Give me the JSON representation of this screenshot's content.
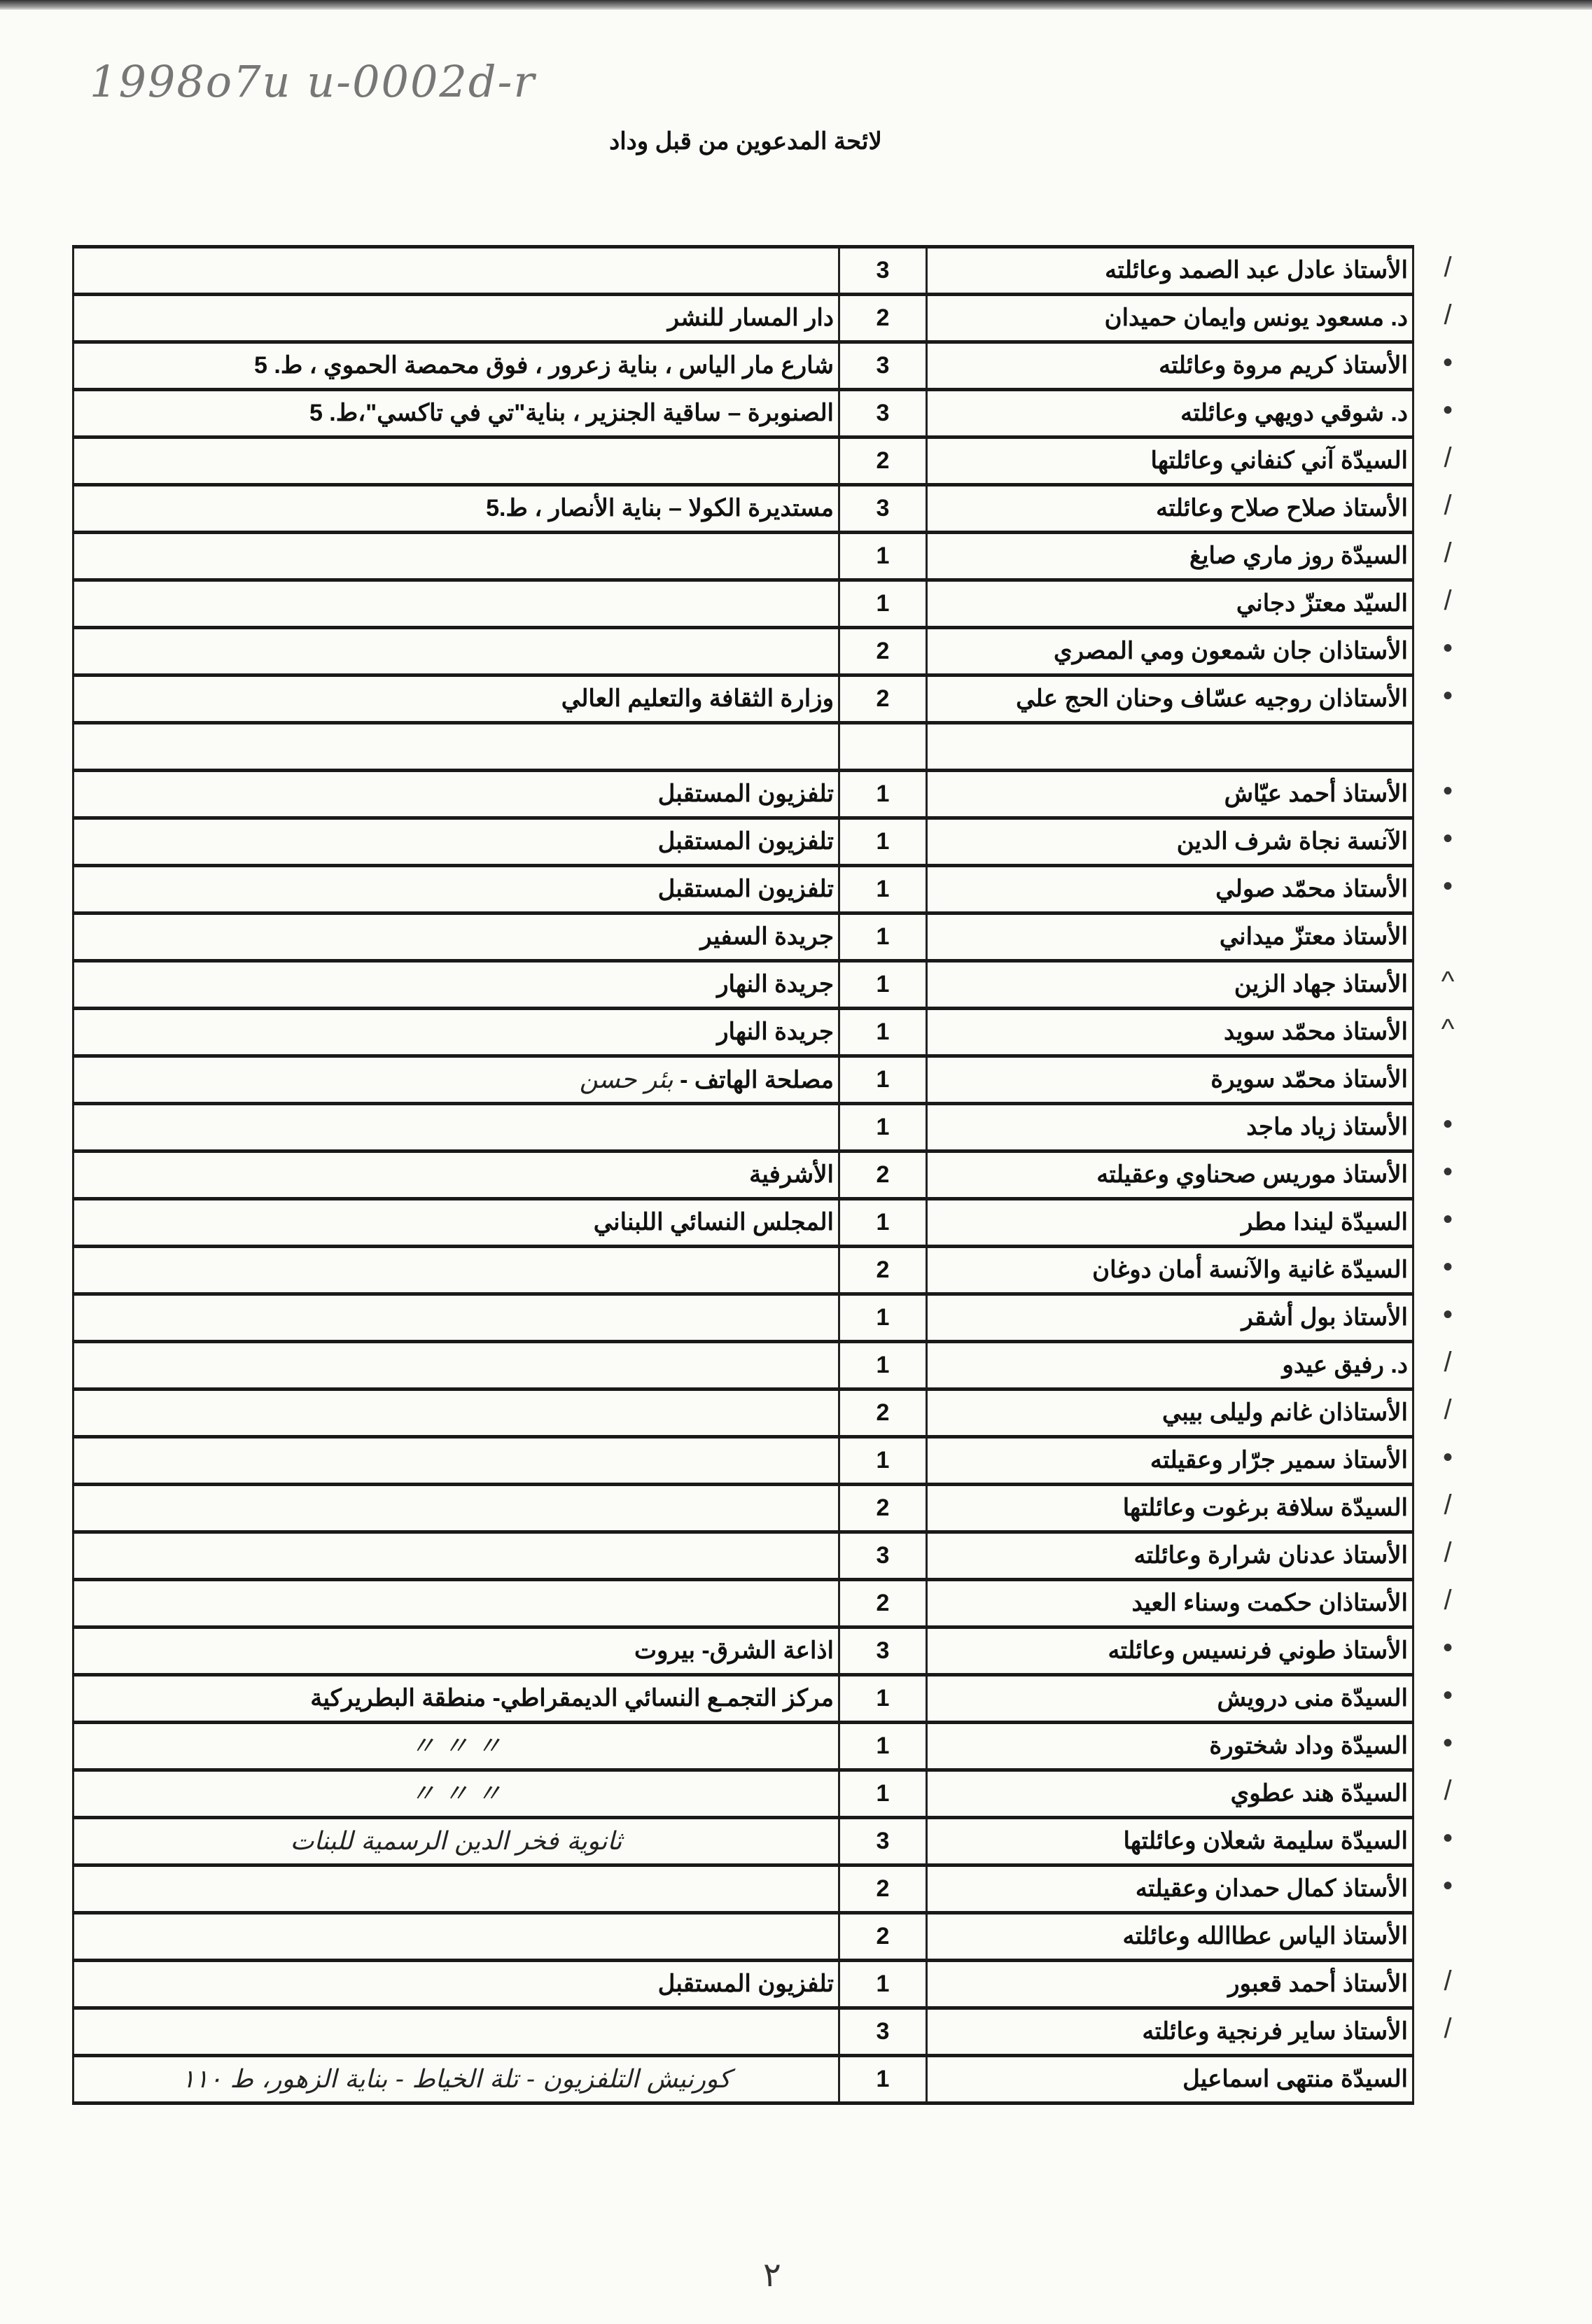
{
  "reference_number": "1998o7u u-0002d-r",
  "title": "لائحة المدعوين من قبل وداد",
  "page_number": "٢",
  "rows": [
    {
      "name": "الأستاذ عادل عبد الصمد وعائلته",
      "count": "3",
      "notes": "",
      "mark": "check"
    },
    {
      "name": "د. مسعود يونس وايمان حميدان",
      "count": "2",
      "notes": "دار المسار للنشر",
      "mark": "check"
    },
    {
      "name": "الأستاذ كريم مروة وعائلته",
      "count": "3",
      "notes": "شارع مار الياس ، بناية زعرور ، فوق محمصة الحموي ، ط. 5",
      "mark": "dot"
    },
    {
      "name": "د. شوقي دويهي وعائلته",
      "count": "3",
      "notes": "الصنوبرة – ساقية الجنزير ، بناية\"تي في تاكسي\"،ط. 5",
      "mark": "dot"
    },
    {
      "name": "السيدّة آني كنفاني وعائلتها",
      "count": "2",
      "notes": "",
      "mark": "check"
    },
    {
      "name": "الأستاذ صلاح صلاح وعائلته",
      "count": "3",
      "notes": "مستديرة الكولا – بناية الأنصار ، ط.5",
      "mark": "check"
    },
    {
      "name": "السيدّة روز ماري صايغ",
      "count": "1",
      "notes": "",
      "mark": "check"
    },
    {
      "name": "السيّد معتزّ دجاني",
      "count": "1",
      "notes": "",
      "mark": "check"
    },
    {
      "name": "الأستاذان جان شمعون ومي المصري",
      "count": "2",
      "notes": "",
      "mark": "dot"
    },
    {
      "name": "الأستاذان روجيه عسّاف وحنان الحج علي",
      "count": "2",
      "notes": "وزارة الثقافة والتعليم العالي",
      "mark": "dot"
    },
    {
      "name": "",
      "count": "",
      "notes": "",
      "mark": ""
    },
    {
      "name": "الأستاذ أحمد عيّاش",
      "count": "1",
      "notes": "تلفزيون المستقبل",
      "mark": "dot"
    },
    {
      "name": "الآنسة نجاة شرف الدين",
      "count": "1",
      "notes": "تلفزيون المستقبل",
      "mark": "dot"
    },
    {
      "name": "الأستاذ محمّد صولي",
      "count": "1",
      "notes": "تلفزيون المستقبل",
      "mark": "dot"
    },
    {
      "name": "الأستاذ معتزّ ميداني",
      "count": "1",
      "notes": "جريدة السفير",
      "mark": ""
    },
    {
      "name": "الأستاذ جهاد الزين",
      "count": "1",
      "notes": "جريدة النهار",
      "mark": "caret"
    },
    {
      "name": "الأستاذ محمّد سويد",
      "count": "1",
      "notes": "جريدة النهار",
      "mark": "caret"
    },
    {
      "name": "الأستاذ محمّد سويرة",
      "count": "1",
      "notes": "مصلحة الهاتف - ",
      "handwritten": "بئر حسن",
      "mark": ""
    },
    {
      "name": "الأستاذ زياد ماجد",
      "count": "1",
      "notes": "",
      "mark": "dot"
    },
    {
      "name": "الأستاذ موريس صحناوي وعقيلته",
      "count": "2",
      "notes": "الأشرفية",
      "mark": "dot"
    },
    {
      "name": "السيدّة ليندا مطر",
      "count": "1",
      "notes": "المجلس النسائي اللبناني",
      "mark": "dot"
    },
    {
      "name": "السيدّة غانية والآنسة أمان دوغان",
      "count": "2",
      "notes": "",
      "mark": "dot"
    },
    {
      "name": "الأستاذ بول أشقر",
      "count": "1",
      "notes": "",
      "mark": "dot"
    },
    {
      "name": "د. رفيق عيدو",
      "count": "1",
      "notes": "",
      "mark": "check"
    },
    {
      "name": "الأستاذان غانم وليلى بيبي",
      "count": "2",
      "notes": "",
      "mark": "check"
    },
    {
      "name": "الأستاذ سمير جرّار وعقيلته",
      "count": "1",
      "notes": "",
      "mark": "dot"
    },
    {
      "name": "السيدّة سلافة برغوت وعائلتها",
      "count": "2",
      "notes": "",
      "mark": "check"
    },
    {
      "name": "الأستاذ عدنان شرارة وعائلته",
      "count": "3",
      "notes": "",
      "mark": "check"
    },
    {
      "name": "الأستاذان حكمت وسناء العيد",
      "count": "2",
      "notes": "",
      "mark": "check"
    },
    {
      "name": "الأستاذ طوني فرنسيس وعائلته",
      "count": "3",
      "notes": "اذاعة الشرق- بيروت",
      "mark": "dot"
    },
    {
      "name": "السيدّة منى درويش",
      "count": "1",
      "notes": "مركز التجمـع النسائي الديمقراطي- منطقة البطريركية",
      "mark": "dot"
    },
    {
      "name": "السيدّة وداد شختورة",
      "count": "1",
      "notes": "",
      "handwritten": "〃          〃          〃",
      "mark": "dot"
    },
    {
      "name": "السيدّة هند عطوي",
      "count": "1",
      "notes": "",
      "handwritten": "〃          〃          〃",
      "mark": "check"
    },
    {
      "name": "السيدّة سليمة شعلان وعائلتها",
      "count": "3",
      "notes": "",
      "handwritten": "ثانوية فخر الدين الرسمية للبنات",
      "mark": "dot"
    },
    {
      "name": "الأستاذ كمال حمدان وعقيلته",
      "count": "2",
      "notes": "",
      "mark": "dot"
    },
    {
      "name": "الأستاذ الياس عطاالله وعائلته",
      "count": "2",
      "notes": "",
      "mark": ""
    },
    {
      "name": "الأستاذ أحمد قعبور",
      "count": "1",
      "notes": "تلفزيون المستقبل",
      "mark": "check"
    },
    {
      "name": "الأستاذ ساير فرنجية وعائلته",
      "count": "3",
      "notes": "",
      "mark": "check"
    },
    {
      "name": "السيدّة منتهى اسماعيل",
      "count": "1",
      "notes": "",
      "handwritten": "كورنيش التلفزيون - تلة الخياط - بناية الزهور، ط ١١٠",
      "mark": ""
    }
  ]
}
